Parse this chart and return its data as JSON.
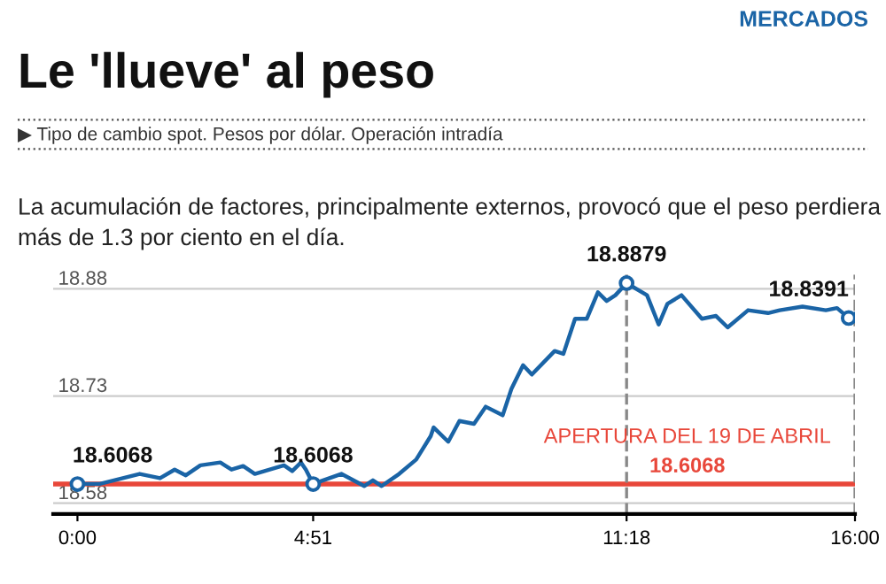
{
  "chart_data": {
    "type": "line",
    "title": "Le 'llueve' al peso",
    "subtitle": "▶ Tipo de cambio spot. Pesos por dólar. Operación intradía",
    "annotations": [
      "MERCADOS",
      "La acumulación de factores, principalmente externos, provocó que el peso perdiera más de 1.3 por ciento en el día.",
      {
        "text": "18.6068",
        "x": 0,
        "y": 18.6068
      },
      {
        "text": "18.6068",
        "x": 4.85,
        "y": 18.6068
      },
      {
        "text": "18.8879",
        "x": 11.3,
        "y": 18.8879
      },
      {
        "text": "18.8391",
        "x": 15.87,
        "y": 18.8391
      }
    ],
    "series": [
      {
        "color": "#1a64a6",
        "x": [
          0,
          0.46,
          1.28,
          1.7,
          2.0,
          2.23,
          2.53,
          2.94,
          3.17,
          3.41,
          3.65,
          4.25,
          4.42,
          4.6,
          4.7,
          4.85,
          5.43,
          5.9,
          6.08,
          6.26,
          6.62,
          6.97,
          7.27,
          7.33,
          7.63,
          7.86,
          8.16,
          8.4,
          8.75,
          8.93,
          9.17,
          9.35,
          9.82,
          10.0,
          10.24,
          10.48,
          10.71,
          10.89,
          11.07,
          11.3,
          11.72,
          11.96,
          12.14,
          12.43,
          12.85,
          13.14,
          13.38,
          13.8,
          14.21,
          14.45,
          14.92,
          15.4,
          15.63,
          15.87,
          16.0
        ],
        "values": [
          18.607,
          18.607,
          18.621,
          18.615,
          18.627,
          18.619,
          18.633,
          18.637,
          18.627,
          18.632,
          18.621,
          18.633,
          18.625,
          18.637,
          18.627,
          18.607,
          18.621,
          18.604,
          18.612,
          18.604,
          18.621,
          18.641,
          18.674,
          18.686,
          18.666,
          18.695,
          18.691,
          18.715,
          18.703,
          18.74,
          18.773,
          18.76,
          18.793,
          18.789,
          18.838,
          18.838,
          18.875,
          18.863,
          18.871,
          18.8879,
          18.871,
          18.83,
          18.859,
          18.871,
          18.838,
          18.842,
          18.826,
          18.85,
          18.846,
          18.85,
          18.855,
          18.85,
          18.853,
          18.8391,
          18.845
        ]
      }
    ],
    "xlim": [
      -0.5,
      16
    ],
    "xticks": [
      {
        "value": 0,
        "label": "0:00"
      },
      {
        "value": 4.85,
        "label": "4:51"
      },
      {
        "value": 11.3,
        "label": "11:18"
      },
      {
        "value": 16,
        "label": "16:00"
      }
    ],
    "ylim": [
      18.565,
      18.9
    ],
    "yticks": [
      18.58,
      18.73,
      18.88
    ],
    "grid": "y",
    "line_style": "solid",
    "ref_lines": [
      {
        "axis": "y",
        "value": 18.6068,
        "label": "APERTURA DEL 19 DE ABRIL\n18.6068",
        "color": "#e8473a"
      },
      {
        "axis": "x",
        "value": 11.3,
        "line_style": "dashed",
        "color": "#888888"
      },
      {
        "axis": "x",
        "value": 16,
        "line_style": "dashed",
        "color": "#888888"
      }
    ]
  }
}
